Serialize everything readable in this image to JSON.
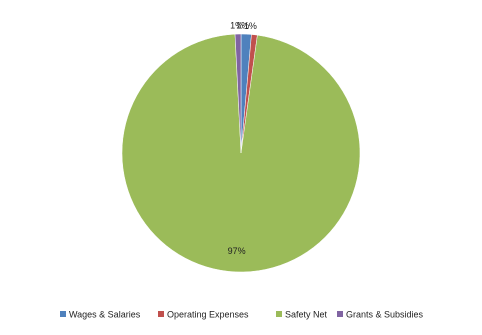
{
  "chart_data": {
    "type": "pie",
    "categories": [
      "Wages & Salaries",
      "Operating Expenses",
      "Safety Net",
      "Grants & Subsidies"
    ],
    "values": [
      1.4,
      0.8,
      97,
      0.8
    ],
    "value_labels": [
      "1%",
      "1%",
      "97%",
      "1%"
    ],
    "colors": [
      "#4f81bd",
      "#c0504d",
      "#9bbb59",
      "#8064a2"
    ],
    "legend": "bottom"
  }
}
